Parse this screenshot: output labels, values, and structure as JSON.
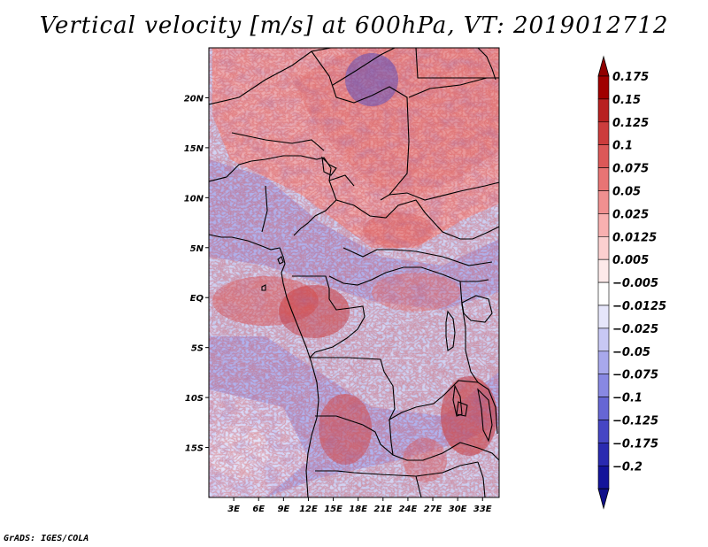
{
  "title": "Vertical velocity [m/s] at 600hPa, VT: 2019012712",
  "footer": "GrADS: IGES/COLA",
  "map": {
    "lon_range": [
      0,
      35
    ],
    "lat_range": [
      -20,
      25
    ],
    "lat_ticks": [
      {
        "label": "20N",
        "lat": 20
      },
      {
        "label": "15N",
        "lat": 15
      },
      {
        "label": "10N",
        "lat": 10
      },
      {
        "label": "5N",
        "lat": 5
      },
      {
        "label": "EQ",
        "lat": 0
      },
      {
        "label": "5S",
        "lat": -5
      },
      {
        "label": "10S",
        "lat": -10
      },
      {
        "label": "15S",
        "lat": -15
      }
    ],
    "lon_ticks": [
      {
        "label": "3E",
        "lon": 3
      },
      {
        "label": "6E",
        "lon": 6
      },
      {
        "label": "9E",
        "lon": 9
      },
      {
        "label": "12E",
        "lon": 12
      },
      {
        "label": "15E",
        "lon": 15
      },
      {
        "label": "18E",
        "lon": 18
      },
      {
        "label": "21E",
        "lon": 21
      },
      {
        "label": "24E",
        "lon": 24
      },
      {
        "label": "27E",
        "lon": 27
      },
      {
        "label": "30E",
        "lon": 30
      },
      {
        "label": "33E",
        "lon": 33
      }
    ]
  },
  "colorbar": {
    "labels": [
      "0.175",
      "0.15",
      "0.125",
      "0.1",
      "0.075",
      "0.05",
      "0.025",
      "0.0125",
      "0.005",
      "−0.005",
      "−0.0125",
      "−0.025",
      "−0.05",
      "−0.075",
      "−0.1",
      "−0.125",
      "−0.175",
      "−0.2"
    ],
    "colors": [
      "#a00000",
      "#b82020",
      "#cc3c3c",
      "#dc5858",
      "#e87474",
      "#f09090",
      "#f8b0b0",
      "#fcd0d0",
      "#fdeaea",
      "#ffffff",
      "#e6e6fb",
      "#c8c8f4",
      "#a8a8ec",
      "#8888e2",
      "#6666d4",
      "#4646c4",
      "#2a2ab0",
      "#14149a",
      "#000080"
    ],
    "tip_top": "#900000",
    "tip_bottom": "#10108a"
  }
}
